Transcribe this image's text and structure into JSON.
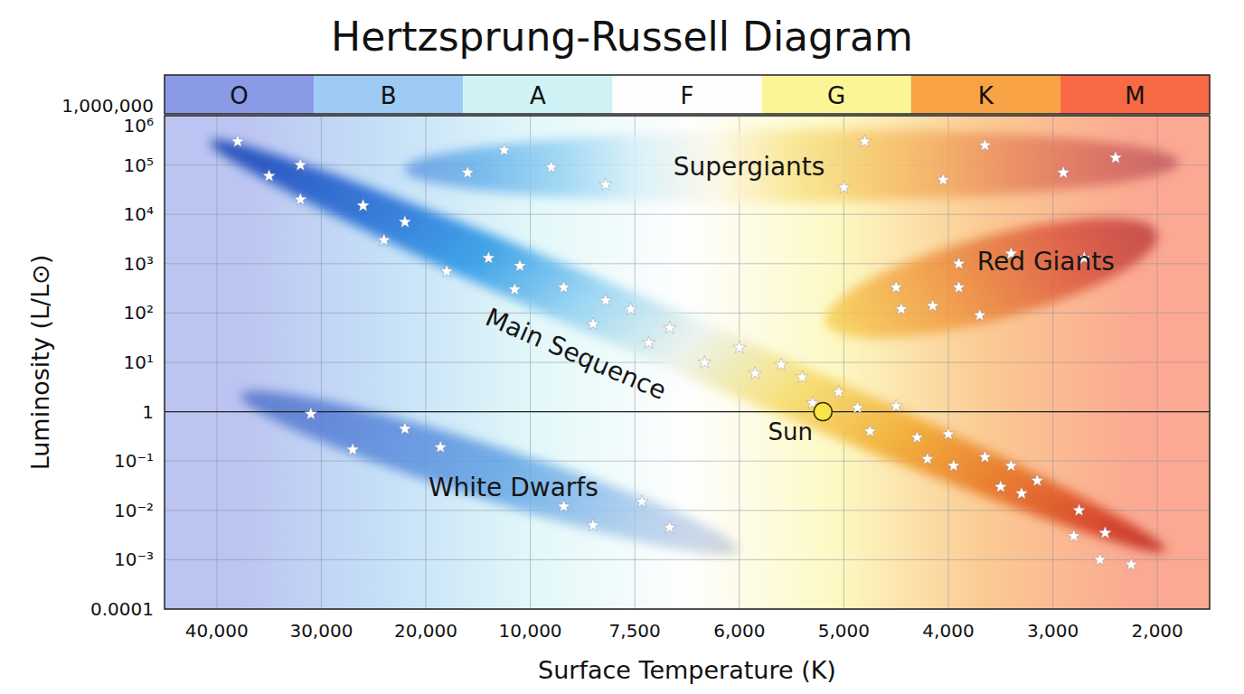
{
  "chart_data": {
    "type": "scatter",
    "title": "Hertzsprung-Russell Diagram",
    "x_label": "Surface Temperature (K)",
    "y_label": "Luminosity (L/L⊙)",
    "log": "y",
    "grid": true,
    "xlim": [
      45000,
      1500
    ],
    "xticks": [
      {
        "value": 40000,
        "label": "40,000"
      },
      {
        "value": 30000,
        "label": "30,000"
      },
      {
        "value": 20000,
        "label": "20,000"
      },
      {
        "value": 10000,
        "label": "10,000"
      },
      {
        "value": 7500,
        "label": "7,500"
      },
      {
        "value": 6000,
        "label": "6,000"
      },
      {
        "value": 5000,
        "label": "5,000"
      },
      {
        "value": 4000,
        "label": "4,000"
      },
      {
        "value": 3000,
        "label": "3,000"
      },
      {
        "value": 2000,
        "label": "2,000"
      }
    ],
    "ylim": [
      0.0001,
      1000000
    ],
    "yticks": [
      0.0001,
      {
        "value": 0.001,
        "label": "10⁻³"
      },
      {
        "value": 0.01,
        "label": "10⁻²"
      },
      {
        "value": 0.1,
        "label": "10⁻¹"
      },
      1,
      {
        "value": 10,
        "label": "10¹"
      },
      {
        "value": 100,
        "label": "10²"
      },
      {
        "value": 1000,
        "label": "10³"
      },
      {
        "value": 10000,
        "label": "10⁴"
      },
      {
        "value": 100000,
        "label": "10⁵"
      },
      {
        "value": 1000000,
        "label": "10⁶"
      },
      {
        "value": 1000000,
        "label": "1,000,000"
      }
    ],
    "spectral_classes": {
      "labels": [
        "O",
        "B",
        "A",
        "F",
        "G",
        "K",
        "M"
      ],
      "colors": [
        "#8b9ae6",
        "#9dcbf3",
        "#cff3f5",
        "#fefefe",
        "#fcf597",
        "#f8a345",
        "#f86a43"
      ]
    },
    "series": [
      {
        "name": "Main Sequence",
        "marker": "star",
        "color": "#ffffff",
        "x": [
          38000,
          35000,
          32000,
          32000,
          26000,
          24000,
          22000,
          18000,
          14000,
          11500,
          11000,
          9200,
          8500,
          8200,
          7600,
          7300,
          7000,
          6500,
          6000,
          5850,
          5600,
          5400,
          5300,
          5050,
          4870,
          4750,
          4500,
          4300,
          4200,
          4000,
          3950,
          3650,
          3500,
          3400,
          3300,
          3150,
          2800,
          2750,
          2550,
          2500,
          2250
        ],
        "values": [
          300000,
          60000,
          100000,
          20000,
          15000,
          3000,
          7000,
          700,
          1300,
          300,
          900,
          330,
          60,
          180,
          120,
          25,
          50,
          10,
          20,
          6,
          9,
          5,
          1.5,
          2.5,
          1.2,
          0.4,
          1.3,
          0.3,
          0.11,
          0.35,
          0.08,
          0.12,
          0.03,
          0.08,
          0.022,
          0.04,
          0.003,
          0.01,
          0.001,
          0.0035,
          0.0008
        ]
      },
      {
        "name": "Supergiants",
        "marker": "star",
        "color": "#ffffff",
        "x": [
          16000,
          12500,
          9500,
          8200,
          5000,
          4800,
          4050,
          3650,
          2900,
          2400
        ],
        "values": [
          70000,
          200000,
          90000,
          40000,
          35000,
          300000,
          50000,
          250000,
          70000,
          140000
        ]
      },
      {
        "name": "Red Giants",
        "marker": "star",
        "color": "#ffffff",
        "x": [
          4500,
          4450,
          4150,
          3900,
          3900,
          3700,
          3400,
          2700
        ],
        "values": [
          330,
          120,
          140,
          330,
          1000,
          90,
          1600,
          1300
        ]
      },
      {
        "name": "White Dwarfs",
        "marker": "star",
        "color": "#ffffff",
        "x": [
          31000,
          27000,
          22000,
          18600,
          9200,
          8500,
          7400,
          7000
        ],
        "values": [
          0.9,
          0.17,
          0.45,
          0.19,
          0.012,
          0.005,
          0.015,
          0.0045
        ]
      },
      {
        "name": "Sun",
        "marker": "circle",
        "color": "#f9e547",
        "x": [
          5200
        ],
        "values": [
          1
        ]
      }
    ]
  }
}
